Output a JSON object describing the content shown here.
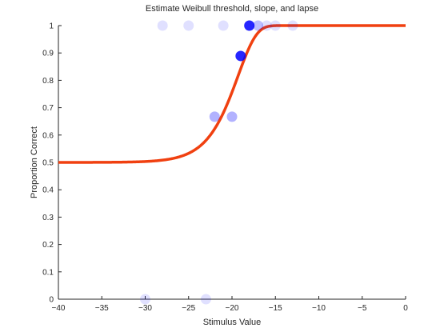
{
  "chart_data": {
    "type": "scatter",
    "title": "Estimate Weibull threshold, slope, and lapse",
    "xlabel": "Stimulus Value",
    "ylabel": "Proportion Correct",
    "xlim": [
      -40,
      0
    ],
    "ylim": [
      0,
      1
    ],
    "grid": false,
    "x_ticks": [
      -40,
      -35,
      -30,
      -25,
      -20,
      -15,
      -10,
      -5,
      0
    ],
    "x_tick_labels": [
      "−40",
      "−35",
      "−30",
      "−25",
      "−20",
      "−15",
      "−10",
      "−5",
      "0"
    ],
    "y_ticks": [
      0,
      0.1,
      0.2,
      0.3,
      0.4,
      0.5,
      0.6,
      0.7,
      0.8,
      0.9,
      1
    ],
    "y_tick_labels": [
      "0",
      "0.1",
      "0.2",
      "0.3",
      "0.4",
      "0.5",
      "0.6",
      "0.7",
      "0.8",
      "0.9",
      "1"
    ],
    "series": [
      {
        "type": "scatter",
        "color": "#0000ff",
        "points": [
          {
            "x": -30,
            "y": 0,
            "weight": 0.12
          },
          {
            "x": -23,
            "y": 0,
            "weight": 0.12
          },
          {
            "x": -28,
            "y": 1,
            "weight": 0.12
          },
          {
            "x": -25,
            "y": 1,
            "weight": 0.12
          },
          {
            "x": -21,
            "y": 1,
            "weight": 0.12
          },
          {
            "x": -22,
            "y": 0.667,
            "weight": 0.3
          },
          {
            "x": -20,
            "y": 0.667,
            "weight": 0.3
          },
          {
            "x": -19,
            "y": 0.889,
            "weight": 0.85
          },
          {
            "x": -18,
            "y": 1,
            "weight": 0.85
          },
          {
            "x": -17,
            "y": 1,
            "weight": 0.25
          },
          {
            "x": -16,
            "y": 1,
            "weight": 0.12
          },
          {
            "x": -15,
            "y": 1,
            "weight": 0.12
          },
          {
            "x": -13,
            "y": 1,
            "weight": 0.12
          }
        ]
      },
      {
        "type": "line",
        "color": "#f04010",
        "function": "weibull",
        "guess_rate": 0.5,
        "lapse_rate": 0,
        "threshold": -19.3,
        "slope": 0.47
      }
    ]
  }
}
